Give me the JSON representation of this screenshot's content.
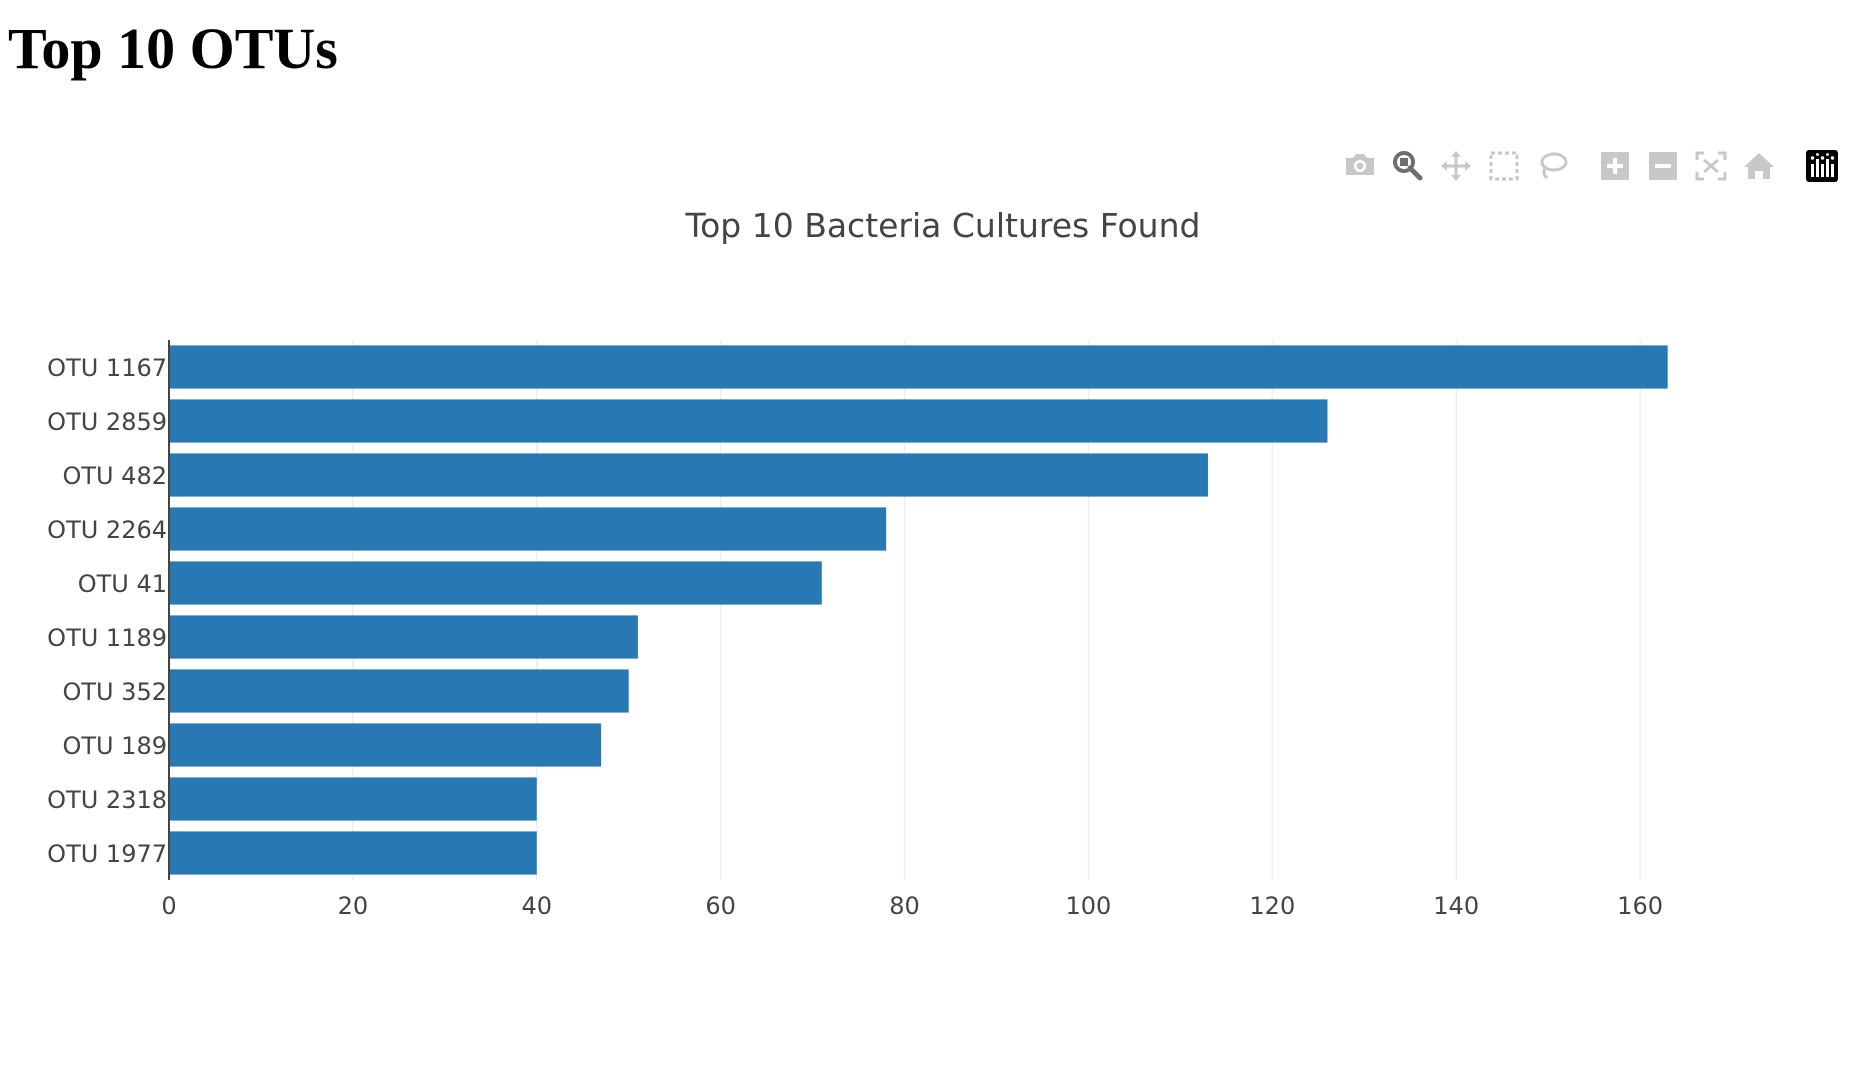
{
  "page": {
    "heading": "Top 10 OTUs"
  },
  "modebar": {
    "icons": [
      "camera-icon",
      "zoom-icon",
      "pan-icon",
      "box-select-icon",
      "lasso-select-icon",
      "zoom-in-icon",
      "zoom-out-icon",
      "autoscale-icon",
      "reset-axes-icon",
      "plotly-logo-icon"
    ],
    "active_icon": "zoom-icon",
    "colors": {
      "inactive": "#c8c8c8",
      "active": "#6e6e6e",
      "logo": "#000000"
    }
  },
  "chart_data": {
    "type": "bar",
    "orientation": "horizontal",
    "title": "Top 10 Bacteria Cultures Found",
    "xlabel": "",
    "ylabel": "",
    "categories": [
      "OTU 1167",
      "OTU 2859",
      "OTU 482",
      "OTU 2264",
      "OTU 41",
      "OTU 1189",
      "OTU 352",
      "OTU 189",
      "OTU 2318",
      "OTU 1977"
    ],
    "values": [
      163,
      126,
      113,
      78,
      71,
      51,
      50,
      47,
      40,
      40
    ],
    "xlim": [
      0,
      175
    ],
    "xticks": [
      0,
      20,
      40,
      60,
      80,
      100,
      120,
      140,
      160
    ],
    "grid": true,
    "bar_color": "#2878b4"
  }
}
